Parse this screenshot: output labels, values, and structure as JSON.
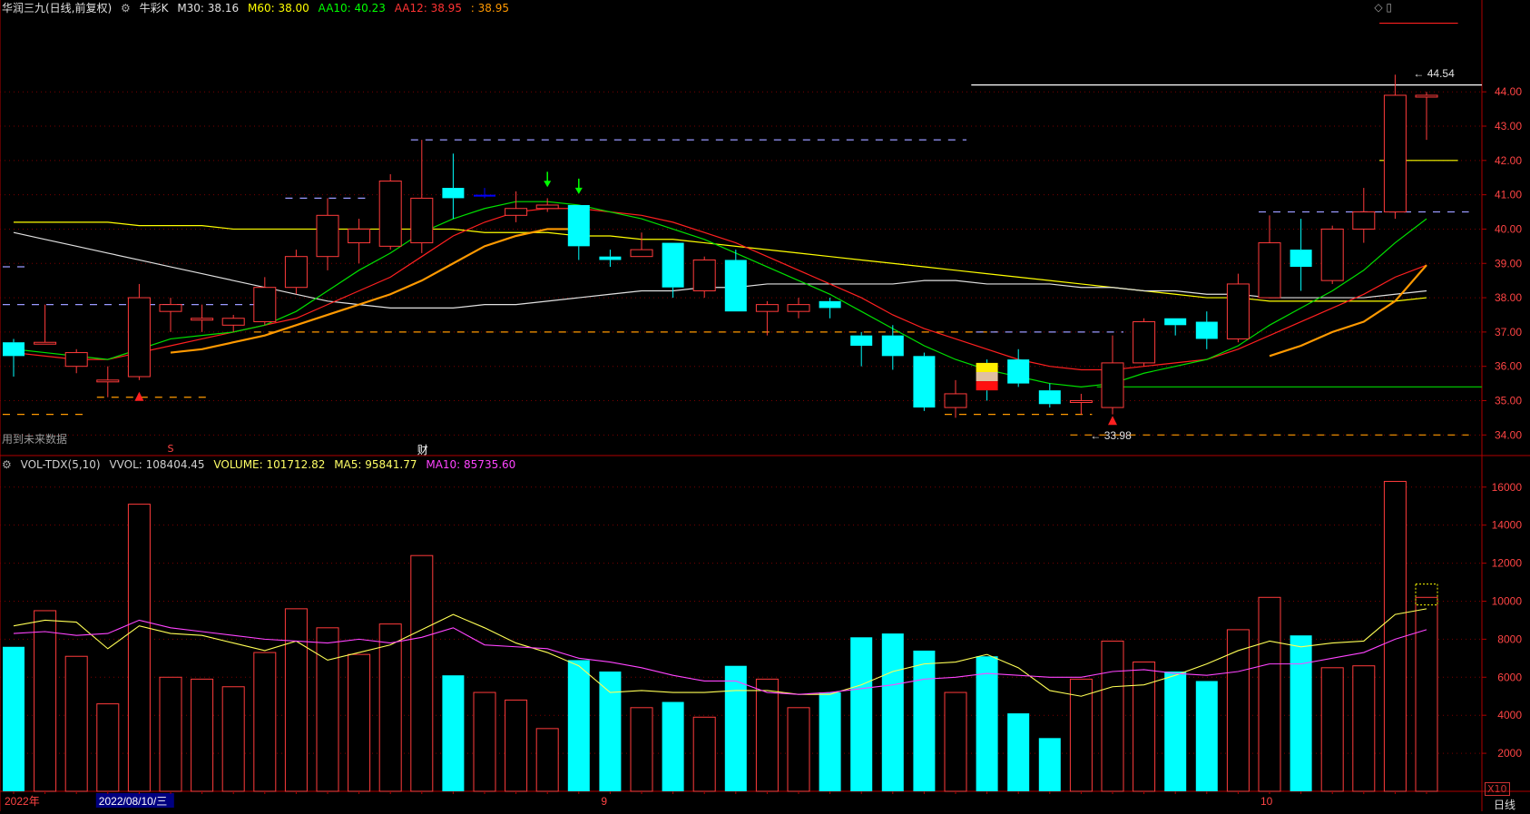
{
  "header": {
    "stock_name": "华润三九(日线,前复权)",
    "indicator": "牛彩K",
    "ma": [
      {
        "label": "M30: 38.16",
        "color": "#e0e0e0"
      },
      {
        "label": "M60: 38.00",
        "color": "#ffff00"
      },
      {
        "label": "AA10: 40.23",
        "color": "#00ff00"
      },
      {
        "label": "AA12: 38.95",
        "color": "#ff3333"
      },
      {
        "label": ": 38.95",
        "color": "#ff9900"
      }
    ]
  },
  "volume_header": {
    "name": "VOL-TDX(5,10)",
    "vvol": "VVOL: 108404.45",
    "volume": "VOLUME: 101712.82",
    "ma5": "MA5: 95841.77",
    "ma10": "MA10: 85735.60",
    "colors": {
      "name": "#d0d0d0",
      "vvol": "#d0d0d0",
      "volume": "#ffff66",
      "ma5": "#ffff66",
      "ma10": "#ff44ff"
    }
  },
  "labels": {
    "future_data_note": "用到未来数据",
    "marker_s": "S",
    "marker_cai": "财",
    "high_label": "44.54",
    "low_label": "33.98",
    "right_ctrl": "◇ ▯",
    "x10": "X10",
    "period": "日线"
  },
  "axis": {
    "x_labels": [
      {
        "text": "2022年",
        "index": 0,
        "color": "#ff4444"
      },
      {
        "text": "2022/08/10/三",
        "index": 3,
        "color": "#ffffff",
        "highlight": true
      },
      {
        "text": "9",
        "index": 19,
        "color": "#ff4444"
      },
      {
        "text": "10",
        "index": 40,
        "color": "#ff4444"
      }
    ]
  },
  "colors": {
    "up": "#ff3b3b",
    "down": "#00ffff",
    "grid": "#7a0000",
    "axis": "#b00000",
    "tick_text": "#ff4444",
    "m30": "#e0e0e0",
    "m60": "#ffff00",
    "aa10": "#00e000",
    "aa12": "#ff2020",
    "ma_orange": "#ff9900",
    "vol_ma5": "#ffff55",
    "vol_ma10": "#ff44ff",
    "support_green": "#00c000",
    "dash_lavender": "#9999ff",
    "dash_orange": "#ff9900"
  },
  "chart_data": [
    {
      "type": "candlestick",
      "yticks": [
        "34.00",
        "35.00",
        "36.00",
        "37.00",
        "38.00",
        "39.00",
        "40.00",
        "41.00",
        "42.00",
        "43.00",
        "44.00"
      ],
      "ylim": [
        33.4,
        46.2
      ],
      "candles": [
        [
          36.7,
          36.3,
          36.8,
          35.7
        ],
        [
          36.7,
          36.7,
          37.8,
          36.7
        ],
        [
          36.0,
          36.4,
          36.5,
          35.8
        ],
        [
          35.6,
          35.6,
          36.0,
          35.1
        ],
        [
          35.7,
          38.0,
          38.4,
          35.6
        ],
        [
          37.6,
          37.8,
          38.0,
          37.0
        ],
        [
          37.4,
          37.4,
          37.8,
          37.0
        ],
        [
          37.2,
          37.4,
          37.5,
          37.0
        ],
        [
          37.3,
          38.3,
          38.6,
          37.2
        ],
        [
          38.3,
          39.2,
          39.4,
          38.1
        ],
        [
          39.2,
          40.4,
          40.9,
          38.8
        ],
        [
          39.6,
          40.0,
          40.3,
          39.0
        ],
        [
          39.5,
          41.4,
          41.6,
          39.4
        ],
        [
          39.6,
          40.9,
          42.6,
          39.3
        ],
        [
          41.2,
          40.9,
          42.2,
          40.3
        ],
        [
          41.0,
          41.0,
          41.2,
          40.9
        ],
        [
          40.4,
          40.6,
          41.1,
          40.2
        ],
        [
          40.6,
          40.7,
          40.9,
          40.5
        ],
        [
          40.7,
          39.5,
          40.7,
          39.1
        ],
        [
          39.2,
          39.1,
          39.4,
          38.9
        ],
        [
          39.2,
          39.4,
          39.9,
          39.2
        ],
        [
          39.6,
          38.3,
          39.6,
          38.0
        ],
        [
          38.2,
          39.1,
          39.2,
          38.0
        ],
        [
          39.1,
          37.6,
          39.4,
          37.6
        ],
        [
          37.6,
          37.8,
          37.9,
          36.9
        ],
        [
          37.6,
          37.8,
          38.0,
          37.4
        ],
        [
          37.9,
          37.7,
          38.0,
          37.4
        ],
        [
          36.9,
          36.6,
          37.0,
          36.0
        ],
        [
          36.9,
          36.3,
          37.2,
          35.9
        ],
        [
          36.3,
          34.8,
          36.4,
          34.7
        ],
        [
          34.8,
          35.2,
          35.6,
          34.5
        ],
        [
          36.1,
          35.3,
          36.2,
          35.0
        ],
        [
          36.2,
          35.5,
          36.5,
          35.4
        ],
        [
          35.3,
          34.9,
          35.5,
          34.8
        ],
        [
          35.0,
          35.0,
          35.2,
          34.6
        ],
        [
          34.8,
          36.1,
          36.9,
          34.6
        ],
        [
          36.1,
          37.3,
          37.4,
          36.0
        ],
        [
          37.4,
          37.2,
          37.4,
          36.9
        ],
        [
          37.3,
          36.8,
          37.6,
          36.5
        ],
        [
          36.8,
          38.4,
          38.7,
          36.7
        ],
        [
          38.0,
          39.6,
          40.4,
          38.0
        ],
        [
          39.4,
          38.9,
          40.3,
          38.2
        ],
        [
          38.5,
          40.0,
          40.1,
          38.4
        ],
        [
          40.0,
          40.5,
          41.2,
          39.6
        ],
        [
          40.5,
          43.9,
          44.5,
          40.3
        ],
        [
          43.9,
          43.9,
          44.0,
          42.6
        ]
      ],
      "m30": [
        39.9,
        39.7,
        39.5,
        39.3,
        39.1,
        38.9,
        38.7,
        38.5,
        38.3,
        38.1,
        37.9,
        37.8,
        37.7,
        37.7,
        37.7,
        37.8,
        37.8,
        37.9,
        38.0,
        38.1,
        38.2,
        38.2,
        38.3,
        38.3,
        38.4,
        38.4,
        38.4,
        38.4,
        38.4,
        38.5,
        38.5,
        38.4,
        38.4,
        38.4,
        38.3,
        38.3,
        38.2,
        38.2,
        38.1,
        38.1,
        38.0,
        38.0,
        38.0,
        38.0,
        38.1,
        38.2
      ],
      "m60": [
        40.2,
        40.2,
        40.2,
        40.2,
        40.1,
        40.1,
        40.1,
        40.0,
        40.0,
        40.0,
        40.0,
        40.0,
        40.0,
        40.0,
        40.0,
        39.9,
        39.9,
        39.9,
        39.8,
        39.8,
        39.7,
        39.7,
        39.6,
        39.5,
        39.4,
        39.3,
        39.2,
        39.1,
        39.0,
        38.9,
        38.8,
        38.7,
        38.6,
        38.5,
        38.4,
        38.3,
        38.2,
        38.1,
        38.0,
        38.0,
        37.9,
        37.9,
        37.9,
        37.9,
        37.9,
        38.0
      ],
      "aa10": [
        36.5,
        36.4,
        36.3,
        36.2,
        36.5,
        36.8,
        36.9,
        37.0,
        37.2,
        37.6,
        38.2,
        38.8,
        39.3,
        39.9,
        40.3,
        40.6,
        40.8,
        40.8,
        40.7,
        40.5,
        40.3,
        40.0,
        39.7,
        39.3,
        38.9,
        38.5,
        38.1,
        37.6,
        37.1,
        36.6,
        36.2,
        35.9,
        35.7,
        35.5,
        35.4,
        35.5,
        35.8,
        36.0,
        36.2,
        36.6,
        37.2,
        37.7,
        38.2,
        38.8,
        39.6,
        40.3
      ],
      "aa12": [
        36.4,
        36.3,
        36.2,
        36.2,
        36.4,
        36.6,
        36.8,
        37.0,
        37.2,
        37.4,
        37.8,
        38.2,
        38.6,
        39.2,
        39.8,
        40.2,
        40.5,
        40.6,
        40.6,
        40.5,
        40.4,
        40.2,
        39.9,
        39.6,
        39.2,
        38.8,
        38.4,
        38.0,
        37.5,
        37.1,
        36.8,
        36.5,
        36.2,
        36.0,
        35.9,
        35.9,
        36.0,
        36.1,
        36.2,
        36.5,
        36.9,
        37.3,
        37.7,
        38.1,
        38.6,
        38.95
      ],
      "ma_orange": [
        null,
        null,
        null,
        null,
        null,
        36.4,
        36.5,
        36.7,
        36.9,
        37.2,
        37.5,
        37.8,
        38.1,
        38.5,
        39.0,
        39.5,
        39.8,
        40.0,
        40.0,
        null,
        null,
        null,
        null,
        null,
        null,
        null,
        null,
        null,
        null,
        null,
        null,
        null,
        null,
        null,
        null,
        null,
        null,
        null,
        null,
        null,
        36.3,
        36.6,
        37.0,
        37.3,
        37.9,
        38.95
      ],
      "dashes": [
        {
          "y": 42.6,
          "from": 13,
          "to": 30,
          "color": "lavender"
        },
        {
          "y": 40.9,
          "from": 9,
          "to": 11,
          "color": "lavender"
        },
        {
          "y": 38.9,
          "from": 0,
          "to": 0,
          "color": "lavender"
        },
        {
          "y": 37.8,
          "from": 0,
          "to": 8,
          "color": "lavender"
        },
        {
          "y": 37.0,
          "from": 8,
          "to": 31,
          "color": "orange"
        },
        {
          "y": 35.1,
          "from": 3,
          "to": 6,
          "color": "orange"
        },
        {
          "y": 34.6,
          "from": 0,
          "to": 2,
          "color": "orange"
        },
        {
          "y": 34.6,
          "from": 30,
          "to": 34,
          "color": "orange"
        },
        {
          "y": 37.0,
          "from": 31,
          "to": 35,
          "color": "lavender"
        },
        {
          "y": 40.5,
          "from": 40,
          "to": 46,
          "color": "lavender"
        },
        {
          "y": 34.0,
          "from": 34,
          "to": 46,
          "color": "orange"
        }
      ],
      "solid_lines": [
        {
          "y": 44.2,
          "from": 30.5,
          "to": 48.5,
          "color": "#ffffff"
        },
        {
          "y": 42.0,
          "from": 43.5,
          "to": 46,
          "color": "#ffff00"
        },
        {
          "y": 35.4,
          "from": 34.5,
          "to": 48.5,
          "color": "#00c000"
        },
        {
          "y": 46.0,
          "from": 43.5,
          "to": 46,
          "color": "#ff2020"
        }
      ],
      "arrows": [
        {
          "index": 4,
          "y": 35.1,
          "dir": "up",
          "color": "#ff2020"
        },
        {
          "index": 17,
          "y": 41.3,
          "dir": "down",
          "color": "#00ff00"
        },
        {
          "index": 18,
          "y": 41.1,
          "dir": "down",
          "color": "#00ff00"
        },
        {
          "index": 35,
          "y": 34.4,
          "dir": "up",
          "color": "#ff2020"
        }
      ],
      "special_bars": [
        {
          "index": 15,
          "color": "#0000ff"
        }
      ],
      "box_index": 31
    },
    {
      "type": "bar",
      "yticks": [
        "2000",
        "4000",
        "6000",
        "8000",
        "10000",
        "12000",
        "14000",
        "16000"
      ],
      "ylim": [
        0,
        16800
      ],
      "values": [
        7600,
        9500,
        7100,
        4600,
        15100,
        6000,
        5900,
        5500,
        7300,
        9600,
        8600,
        7200,
        8800,
        12400,
        6100,
        5200,
        4800,
        3300,
        6900,
        6300,
        4400,
        4700,
        3900,
        6600,
        5900,
        4400,
        5200,
        8100,
        8300,
        7400,
        5200,
        7100,
        4100,
        2800,
        5900,
        7900,
        6800,
        6300,
        5800,
        8500,
        10200,
        8200,
        6500,
        6600,
        16300,
        10200
      ],
      "ma5": [
        8700,
        9000,
        8900,
        7500,
        8700,
        8300,
        8200,
        7800,
        7400,
        7900,
        6900,
        7300,
        7700,
        8500,
        9300,
        8600,
        7800,
        7300,
        6600,
        5200,
        5300,
        5200,
        5200,
        5300,
        5300,
        5100,
        5100,
        5600,
        6300,
        6700,
        6800,
        7200,
        6500,
        5300,
        5000,
        5500,
        5600,
        6100,
        6700,
        7400,
        7900,
        7600,
        7800,
        7900,
        9300,
        9600
      ],
      "ma10": [
        8300,
        8400,
        8200,
        8300,
        9000,
        8600,
        8400,
        8200,
        8000,
        7900,
        7800,
        8000,
        7800,
        8100,
        8600,
        7700,
        7600,
        7500,
        7000,
        6800,
        6500,
        6100,
        5800,
        5800,
        5200,
        5100,
        5200,
        5400,
        5600,
        5900,
        6000,
        6200,
        6100,
        6000,
        6000,
        6300,
        6400,
        6200,
        6100,
        6300,
        6700,
        6700,
        7000,
        7300,
        8000,
        8500
      ]
    }
  ]
}
